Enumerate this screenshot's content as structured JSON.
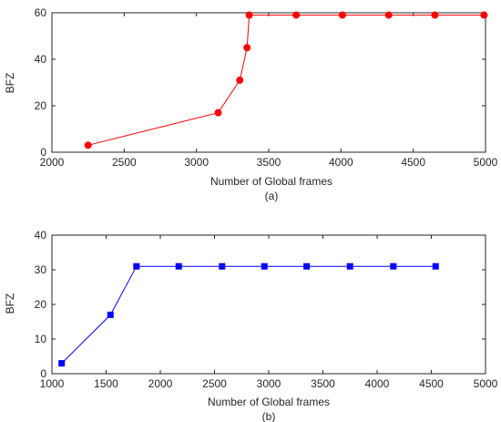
{
  "chart_data": [
    {
      "type": "line",
      "xlabel": "Number of Global frames",
      "ylabel": "BFZ",
      "caption": "(a)",
      "xlim": [
        2000,
        5000
      ],
      "ylim": [
        0,
        60
      ],
      "xticks": [
        2000,
        2500,
        3000,
        3500,
        4000,
        4500,
        5000
      ],
      "yticks": [
        0,
        20,
        40,
        60
      ],
      "grid": false,
      "legend": "none",
      "series": [
        {
          "color": "#ff0000",
          "marker": "circle",
          "x": [
            2250,
            3150,
            3300,
            3350,
            3365,
            3690,
            4010,
            4330,
            4650,
            4990
          ],
          "y": [
            3,
            17,
            31,
            45,
            59,
            59,
            59,
            59,
            59,
            59
          ]
        }
      ]
    },
    {
      "type": "line",
      "xlabel": "Number of Global frames",
      "ylabel": "BFZ",
      "caption": "(b)",
      "xlim": [
        1000,
        5000
      ],
      "ylim": [
        0,
        40
      ],
      "xticks": [
        1000,
        1500,
        2000,
        2500,
        3000,
        3500,
        4000,
        4500,
        5000
      ],
      "yticks": [
        0,
        10,
        20,
        30,
        40
      ],
      "grid": false,
      "legend": "none",
      "series": [
        {
          "color": "#0000ff",
          "marker": "square",
          "x": [
            1090,
            1540,
            1780,
            2170,
            2570,
            2960,
            3350,
            3750,
            4150,
            4540
          ],
          "y": [
            3,
            17,
            31,
            31,
            31,
            31,
            31,
            31,
            31,
            31
          ]
        }
      ]
    }
  ]
}
